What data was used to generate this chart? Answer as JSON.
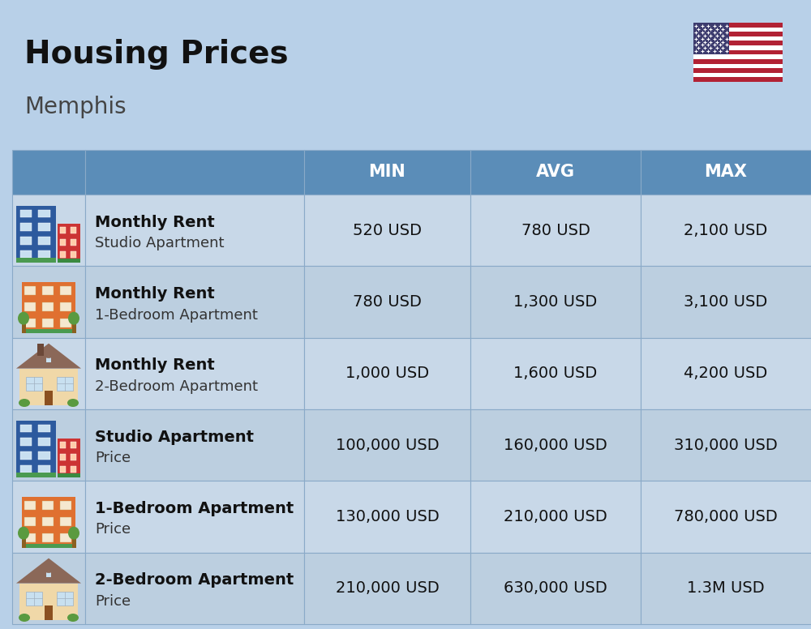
{
  "title": "Housing Prices",
  "subtitle": "Memphis",
  "bg_color": "#b8d0e8",
  "header_bg": "#5b8db8",
  "header_text_color": "#ffffff",
  "row_bg_odd": "#c8d8e8",
  "row_bg_even": "#bccfe0",
  "border_color": "#8aaac8",
  "header_labels": [
    "MIN",
    "AVG",
    "MAX"
  ],
  "rows": [
    {
      "label_bold": "Monthly Rent",
      "label_sub": "Studio Apartment",
      "min": "520 USD",
      "avg": "780 USD",
      "max": "2,100 USD",
      "icon_type": "blue_studio"
    },
    {
      "label_bold": "Monthly Rent",
      "label_sub": "1-Bedroom Apartment",
      "min": "780 USD",
      "avg": "1,300 USD",
      "max": "3,100 USD",
      "icon_type": "orange_apartment"
    },
    {
      "label_bold": "Monthly Rent",
      "label_sub": "2-Bedroom Apartment",
      "min": "1,000 USD",
      "avg": "1,600 USD",
      "max": "4,200 USD",
      "icon_type": "beige_house"
    },
    {
      "label_bold": "Studio Apartment",
      "label_sub": "Price",
      "min": "100,000 USD",
      "avg": "160,000 USD",
      "max": "310,000 USD",
      "icon_type": "blue_studio"
    },
    {
      "label_bold": "1-Bedroom Apartment",
      "label_sub": "Price",
      "min": "130,000 USD",
      "avg": "210,000 USD",
      "max": "780,000 USD",
      "icon_type": "orange_apartment"
    },
    {
      "label_bold": "2-Bedroom Apartment",
      "label_sub": "Price",
      "min": "210,000 USD",
      "avg": "630,000 USD",
      "max": "1.3M USD",
      "icon_type": "beige_house2"
    }
  ],
  "title_fontsize": 28,
  "subtitle_fontsize": 20,
  "header_fontsize": 15,
  "cell_fontsize": 14
}
